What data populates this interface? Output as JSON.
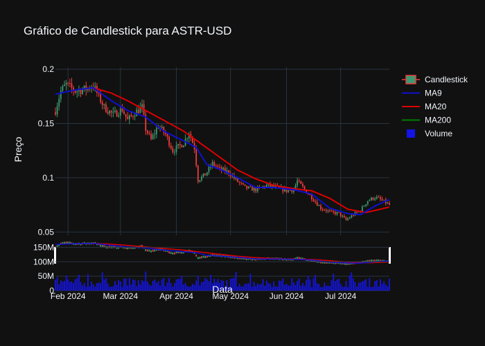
{
  "title": "Gráfico de Candlestick para ASTR-USD",
  "colors": {
    "background": "#111111",
    "grid": "#283442",
    "up": "#3d9970",
    "down": "#ef3b3b",
    "ma9": "#1010d0",
    "ma20": "#e00000",
    "ma200": "#008000",
    "volume": "#1414e6",
    "text": "#f2f5fa"
  },
  "legend": [
    {
      "name": "Candlestick",
      "icon": "candlestick-icon"
    },
    {
      "name": "MA9",
      "icon": "line-icon"
    },
    {
      "name": "MA20",
      "icon": "line-icon"
    },
    {
      "name": "MA200",
      "icon": "line-icon"
    },
    {
      "name": "Volume",
      "icon": "square-icon"
    }
  ],
  "chart_data": {
    "type": "candlestick",
    "title": "Gráfico de Candlestick para ASTR-USD",
    "ylabel": "Preço",
    "xlabel": "Data",
    "ylim": [
      0.047,
      0.202
    ],
    "yticks": [
      "0.05",
      "0.1",
      "0.15",
      "0.2"
    ],
    "xlim": [
      "2024-01-25",
      "2024-07-28"
    ],
    "xticks": [
      {
        "date": "2024-02-01",
        "label": "Feb 2024"
      },
      {
        "date": "2024-03-01",
        "label": "Mar 2024"
      },
      {
        "date": "2024-04-01",
        "label": "Apr 2024"
      },
      {
        "date": "2024-05-01",
        "label": "May 2024"
      },
      {
        "date": "2024-06-01",
        "label": "Jun 2024"
      },
      {
        "date": "2024-07-01",
        "label": "Jul 2024"
      }
    ],
    "close_anchors": [
      [
        "2024-01-25",
        0.162
      ],
      [
        "2024-01-28",
        0.18
      ],
      [
        "2024-01-31",
        0.186
      ],
      [
        "2024-02-05",
        0.18
      ],
      [
        "2024-02-11",
        0.182
      ],
      [
        "2024-02-15",
        0.185
      ],
      [
        "2024-02-18",
        0.175
      ],
      [
        "2024-02-21",
        0.165
      ],
      [
        "2024-02-26",
        0.158
      ],
      [
        "2024-03-02",
        0.163
      ],
      [
        "2024-03-05",
        0.153
      ],
      [
        "2024-03-09",
        0.16
      ],
      [
        "2024-03-13",
        0.165
      ],
      [
        "2024-03-15",
        0.145
      ],
      [
        "2024-03-18",
        0.135
      ],
      [
        "2024-03-22",
        0.148
      ],
      [
        "2024-03-26",
        0.14
      ],
      [
        "2024-03-30",
        0.125
      ],
      [
        "2024-04-05",
        0.132
      ],
      [
        "2024-04-08",
        0.142
      ],
      [
        "2024-04-11",
        0.128
      ],
      [
        "2024-04-13",
        0.098
      ],
      [
        "2024-04-17",
        0.103
      ],
      [
        "2024-04-21",
        0.113
      ],
      [
        "2024-04-25",
        0.108
      ],
      [
        "2024-04-30",
        0.105
      ],
      [
        "2024-05-04",
        0.098
      ],
      [
        "2024-05-09",
        0.091
      ],
      [
        "2024-05-15",
        0.089
      ],
      [
        "2024-05-21",
        0.093
      ],
      [
        "2024-05-27",
        0.091
      ],
      [
        "2024-06-01",
        0.088
      ],
      [
        "2024-06-05",
        0.089
      ],
      [
        "2024-06-07",
        0.097
      ],
      [
        "2024-06-12",
        0.087
      ],
      [
        "2024-06-16",
        0.08
      ],
      [
        "2024-06-20",
        0.072
      ],
      [
        "2024-06-26",
        0.068
      ],
      [
        "2024-06-30",
        0.067
      ],
      [
        "2024-07-04",
        0.061
      ],
      [
        "2024-07-08",
        0.066
      ],
      [
        "2024-07-12",
        0.07
      ],
      [
        "2024-07-16",
        0.079
      ],
      [
        "2024-07-20",
        0.082
      ],
      [
        "2024-07-23",
        0.08
      ],
      [
        "2024-07-26",
        0.077
      ],
      [
        "2024-07-28",
        0.075
      ]
    ],
    "ma9_anchors": [
      [
        "2024-01-25",
        0.177
      ],
      [
        "2024-02-05",
        0.181
      ],
      [
        "2024-02-15",
        0.183
      ],
      [
        "2024-02-25",
        0.171
      ],
      [
        "2024-03-05",
        0.162
      ],
      [
        "2024-03-15",
        0.156
      ],
      [
        "2024-03-25",
        0.143
      ],
      [
        "2024-04-05",
        0.134
      ],
      [
        "2024-04-12",
        0.128
      ],
      [
        "2024-04-18",
        0.112
      ],
      [
        "2024-04-25",
        0.108
      ],
      [
        "2024-05-05",
        0.1
      ],
      [
        "2024-05-15",
        0.091
      ],
      [
        "2024-05-25",
        0.091
      ],
      [
        "2024-06-05",
        0.089
      ],
      [
        "2024-06-15",
        0.085
      ],
      [
        "2024-06-25",
        0.072
      ],
      [
        "2024-07-05",
        0.067
      ],
      [
        "2024-07-12",
        0.066
      ],
      [
        "2024-07-20",
        0.074
      ],
      [
        "2024-07-28",
        0.08
      ]
    ],
    "ma20_anchors": [
      [
        "2024-02-15",
        0.183
      ],
      [
        "2024-02-25",
        0.178
      ],
      [
        "2024-03-05",
        0.171
      ],
      [
        "2024-03-15",
        0.162
      ],
      [
        "2024-03-25",
        0.153
      ],
      [
        "2024-04-05",
        0.143
      ],
      [
        "2024-04-15",
        0.131
      ],
      [
        "2024-04-25",
        0.119
      ],
      [
        "2024-05-05",
        0.107
      ],
      [
        "2024-05-15",
        0.099
      ],
      [
        "2024-05-25",
        0.093
      ],
      [
        "2024-06-05",
        0.09
      ],
      [
        "2024-06-15",
        0.088
      ],
      [
        "2024-06-25",
        0.081
      ],
      [
        "2024-07-05",
        0.071
      ],
      [
        "2024-07-15",
        0.068
      ],
      [
        "2024-07-28",
        0.073
      ]
    ],
    "volume": {
      "yticks": [
        "0",
        "50M",
        "100M",
        "150M"
      ],
      "ylim": [
        0,
        175000000
      ],
      "approx_daily_range": [
        12000000,
        70000000
      ]
    }
  }
}
